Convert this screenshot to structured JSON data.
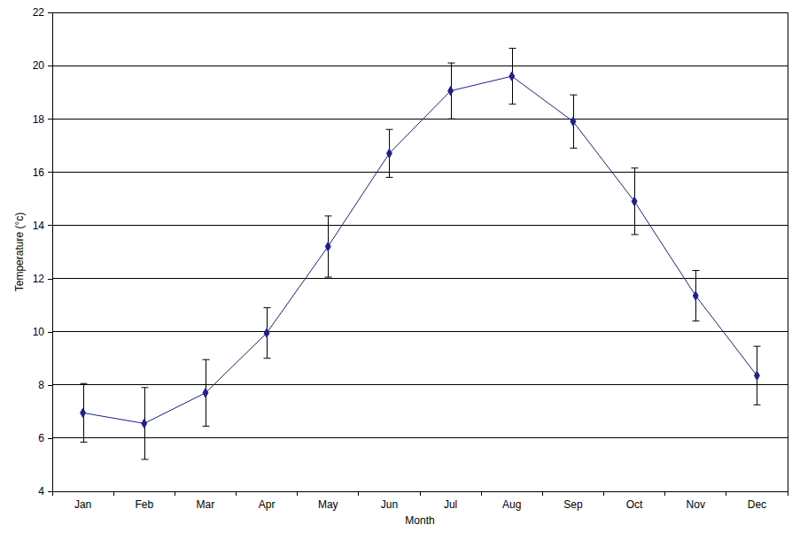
{
  "chart_data": {
    "type": "line",
    "x_label": "Month",
    "y_label": "Temperature (°c)",
    "categories": [
      "Jan",
      "Feb",
      "Mar",
      "Apr",
      "May",
      "Jun",
      "Jul",
      "Aug",
      "Sep",
      "Oct",
      "Nov",
      "Dec"
    ],
    "values": [
      6.95,
      6.55,
      7.7,
      9.95,
      13.2,
      16.7,
      19.05,
      19.6,
      17.9,
      14.9,
      11.35,
      8.35
    ],
    "errors": [
      1.1,
      1.35,
      1.25,
      0.95,
      1.15,
      0.9,
      1.05,
      1.05,
      1.0,
      1.25,
      0.95,
      1.1
    ],
    "color": "#1f1f8f",
    "marker": "diamond",
    "ylim": [
      4,
      22
    ],
    "yticks": [
      4,
      6,
      8,
      10,
      12,
      14,
      16,
      18,
      20,
      22
    ],
    "grid": true
  }
}
